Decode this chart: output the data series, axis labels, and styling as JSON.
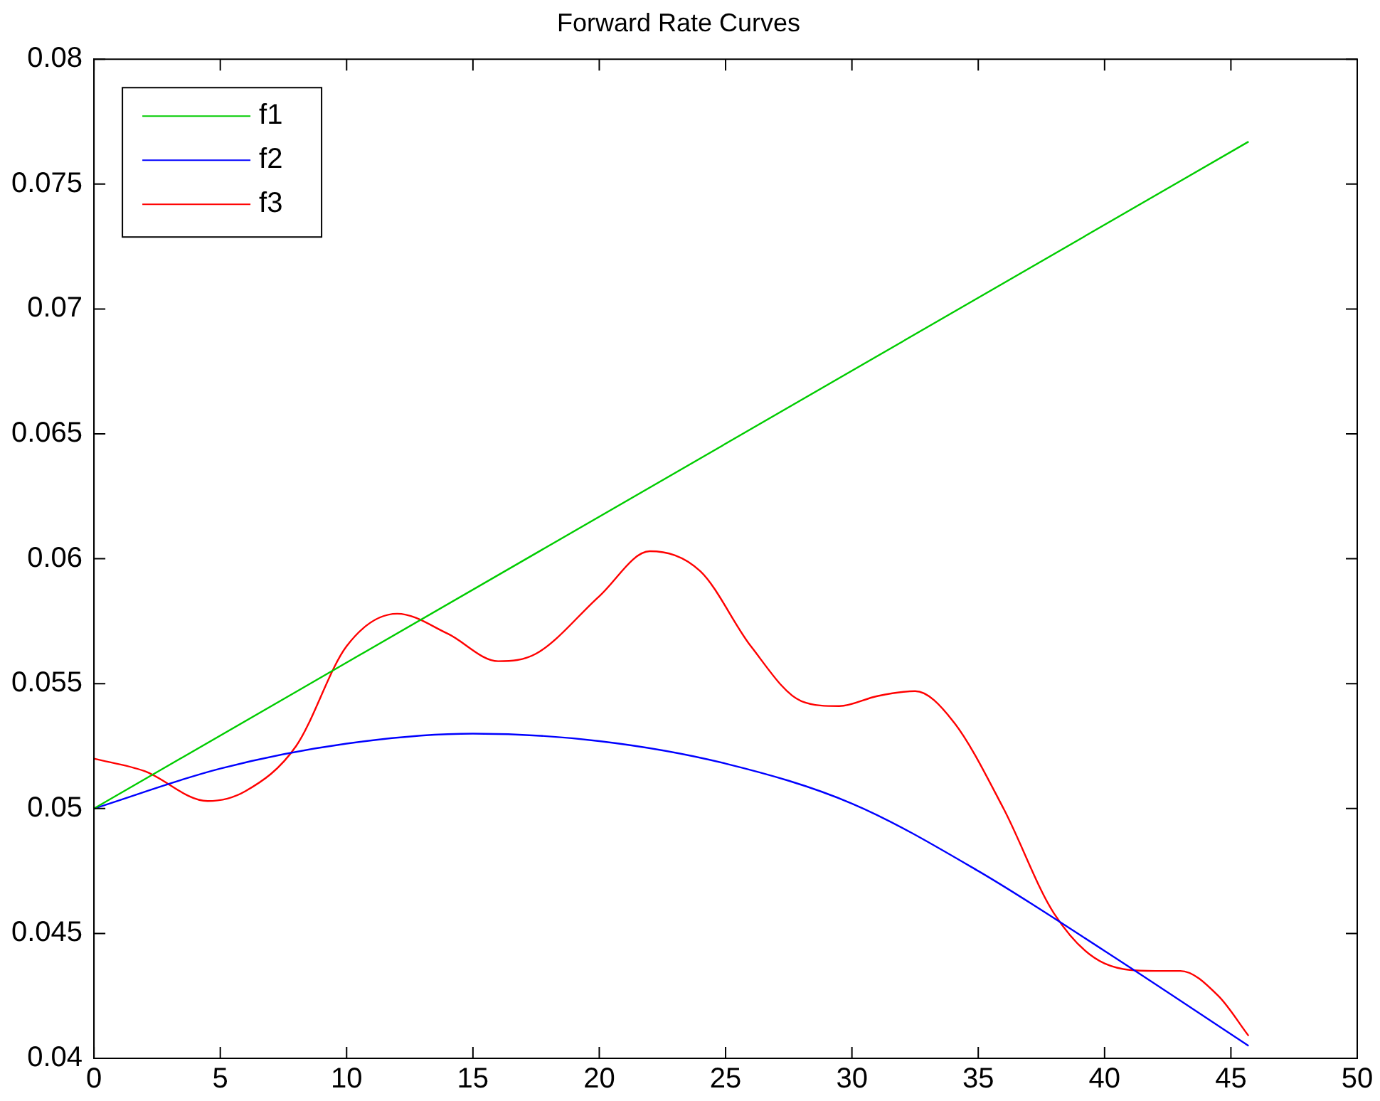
{
  "chart_data": {
    "type": "line",
    "title": "Forward Rate Curves",
    "xlim": [
      0,
      50
    ],
    "xticks": [
      0,
      5,
      10,
      15,
      20,
      25,
      30,
      35,
      40,
      45,
      50
    ],
    "ylim": [
      0.04,
      0.08
    ],
    "yticks": [
      0.04,
      0.045,
      0.05,
      0.055,
      0.06,
      0.065,
      0.07,
      0.075,
      0.08
    ],
    "grid": false,
    "legend": "top left",
    "marker": "none",
    "line_style": "solid",
    "series": [
      {
        "name": "f1",
        "color": "#00cc00",
        "x": [
          0,
          45.7
        ],
        "values": [
          0.05,
          0.0767
        ]
      },
      {
        "name": "f2",
        "color": "#0000ff",
        "x": [
          0,
          5,
          10,
          15,
          20,
          25,
          30,
          35,
          40,
          45.7
        ],
        "values": [
          0.05,
          0.0516,
          0.0526,
          0.053,
          0.0527,
          0.0518,
          0.0502,
          0.0475,
          0.0443,
          0.0405
        ]
      },
      {
        "name": "f3",
        "color": "#ff0000",
        "x": [
          0,
          2,
          4.5,
          6,
          8,
          10,
          12,
          14,
          16,
          17.5,
          20,
          22,
          24,
          26,
          28,
          29.5,
          31,
          32.5,
          34,
          36,
          38,
          40,
          42,
          43,
          44.5,
          45.7
        ],
        "values": [
          0.052,
          0.0515,
          0.0503,
          0.0507,
          0.0525,
          0.0565,
          0.0578,
          0.057,
          0.0559,
          0.0562,
          0.0585,
          0.0603,
          0.0595,
          0.0565,
          0.0543,
          0.0541,
          0.0545,
          0.0547,
          0.0535,
          0.05,
          0.0458,
          0.0438,
          0.0435,
          0.0435,
          0.0425,
          0.0409
        ]
      }
    ]
  }
}
